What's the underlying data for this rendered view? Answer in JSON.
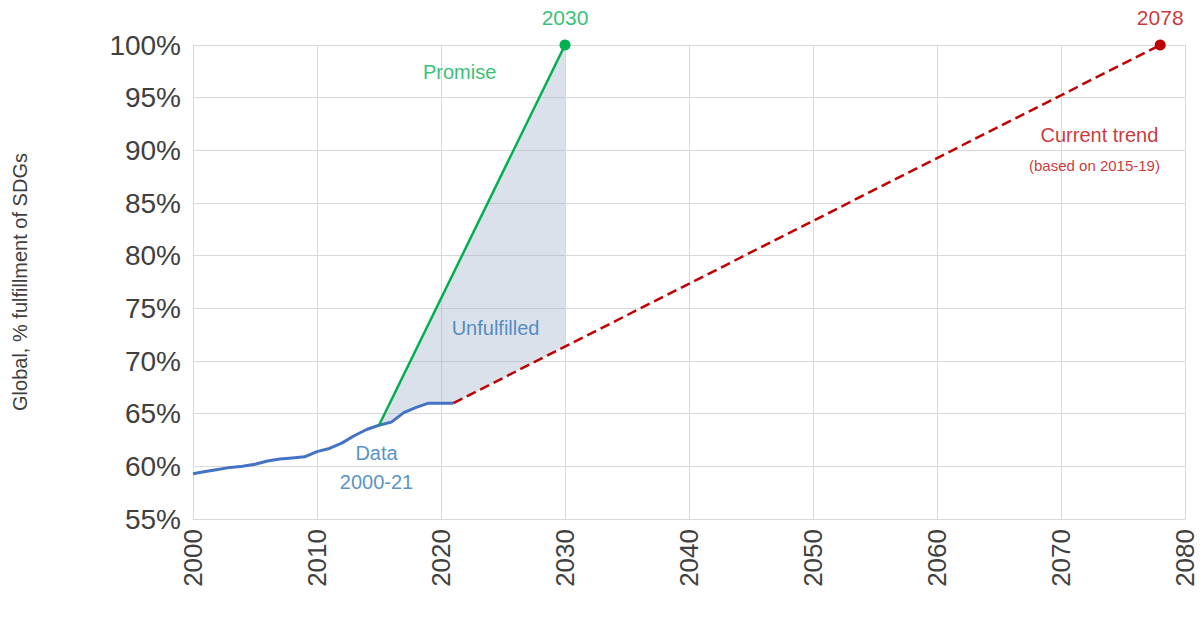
{
  "chart_data": {
    "type": "line",
    "ylabel": "Global, % fulfillment of SDGs",
    "xlim": [
      2000,
      2080
    ],
    "xticks": [
      2000,
      2010,
      2020,
      2030,
      2040,
      2050,
      2060,
      2070,
      2080
    ],
    "ylim": [
      55,
      100
    ],
    "yticks": [
      {
        "value": 55,
        "label": "55%"
      },
      {
        "value": 60,
        "label": "60%"
      },
      {
        "value": 65,
        "label": "65%"
      },
      {
        "value": 70,
        "label": "70%"
      },
      {
        "value": 75,
        "label": "75%"
      },
      {
        "value": 80,
        "label": "80%"
      },
      {
        "value": 85,
        "label": "85%"
      },
      {
        "value": 90,
        "label": "90%"
      },
      {
        "value": 95,
        "label": "95%"
      },
      {
        "value": 100,
        "label": "100%"
      }
    ],
    "grid": true,
    "series": [
      {
        "color": "#4472c4",
        "line_style": "solid",
        "x": [
          2000,
          2001,
          2002,
          2003,
          2004,
          2005,
          2006,
          2007,
          2008,
          2009,
          2010,
          2011,
          2012,
          2013,
          2014,
          2015,
          2016,
          2017,
          2018,
          2019,
          2020,
          2021
        ],
        "values": [
          59.3,
          59.5,
          59.7,
          59.9,
          60.0,
          60.2,
          60.5,
          60.7,
          60.8,
          60.9,
          61.4,
          61.7,
          62.2,
          62.9,
          63.5,
          63.9,
          64.2,
          65.1,
          65.6,
          66.0,
          66.0,
          66.0
        ]
      },
      {
        "color": "#00b050",
        "line_style": "solid",
        "marker": "circle",
        "x": [
          2015,
          2030
        ],
        "values": [
          63.9,
          100
        ]
      },
      {
        "color": "#c00000",
        "line_style": "dashed",
        "marker": "circle",
        "x": [
          2021,
          2078
        ],
        "values": [
          66.0,
          100
        ]
      }
    ],
    "annotations": [
      {
        "text": "2030",
        "x": 2030,
        "y": 102.6,
        "color": "#00b050"
      },
      {
        "text": "Promise",
        "x": 2021.5,
        "y": 97.4,
        "color": "#00b050"
      },
      {
        "text": "2078",
        "x": 2078,
        "y": 102.6,
        "color": "#c00000"
      },
      {
        "text": "Current trend",
        "x": 2073.1,
        "y": 91.5,
        "color": "#c00000"
      },
      {
        "text": "(based on 2015-19)",
        "x": 2072.7,
        "y": 88.6,
        "color": "#c00000"
      },
      {
        "text": "Unfulfilled",
        "x": 2024.4,
        "y": 73.1,
        "color": "#2e75b6"
      },
      {
        "text": "Data",
        "x": 2014.8,
        "y": 61.3,
        "color": "#2e75b6"
      },
      {
        "text": "2000-21",
        "x": 2014.8,
        "y": 58.5,
        "color": "#2e75b6"
      }
    ]
  }
}
